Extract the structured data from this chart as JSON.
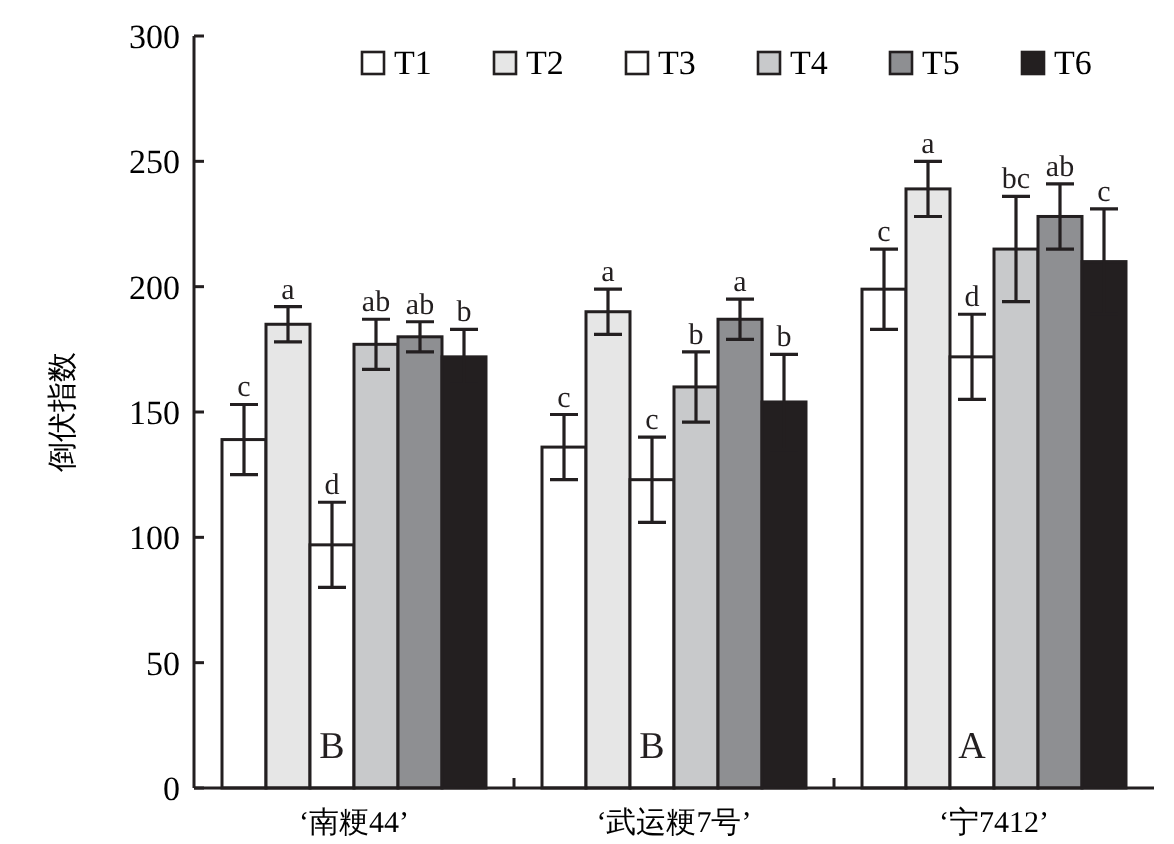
{
  "chart_data": {
    "type": "bar",
    "ylabel": "倒伏指数",
    "categories": [
      "‘南粳44’",
      "‘武运粳7号’",
      "‘宁7412’"
    ],
    "ylim": [
      0,
      300
    ],
    "yticks": [
      0,
      50,
      100,
      150,
      200,
      250,
      300
    ],
    "legend": "top right",
    "grid": false,
    "series": [
      {
        "name": "T1",
        "color": "#ffffff",
        "values": [
          139,
          136,
          199
        ],
        "errors": [
          14,
          13,
          16
        ],
        "value_labels": [
          "c",
          "c",
          "c"
        ]
      },
      {
        "name": "T2",
        "color": "#e6e6e6",
        "values": [
          185,
          190,
          239
        ],
        "errors": [
          7,
          9,
          11
        ],
        "value_labels": [
          "a",
          "a",
          "a"
        ]
      },
      {
        "name": "T3",
        "color": "#ffffff",
        "values": [
          97,
          123,
          172
        ],
        "errors": [
          17,
          17,
          17
        ],
        "value_labels": [
          "d",
          "c",
          "d"
        ]
      },
      {
        "name": "T4",
        "color": "#c8c9cb",
        "values": [
          177,
          160,
          215
        ],
        "errors": [
          10,
          14,
          21
        ],
        "value_labels": [
          "ab",
          "b",
          "bc"
        ]
      },
      {
        "name": "T5",
        "color": "#8e8f92",
        "values": [
          180,
          187,
          228
        ],
        "errors": [
          6,
          8,
          13
        ],
        "value_labels": [
          "ab",
          "a",
          "ab"
        ]
      },
      {
        "name": "T6",
        "color": "#231f20",
        "values": [
          172,
          154,
          210
        ],
        "errors": [
          11,
          19,
          21
        ],
        "value_labels": [
          "b",
          "b",
          "c"
        ]
      }
    ],
    "annotations": [
      {
        "text": "B",
        "x": "‘南粳44’",
        "y": 12
      },
      {
        "text": "B",
        "x": "‘武运粳7号’",
        "y": 12
      },
      {
        "text": "A",
        "x": "‘宁7412’",
        "y": 12
      }
    ]
  }
}
